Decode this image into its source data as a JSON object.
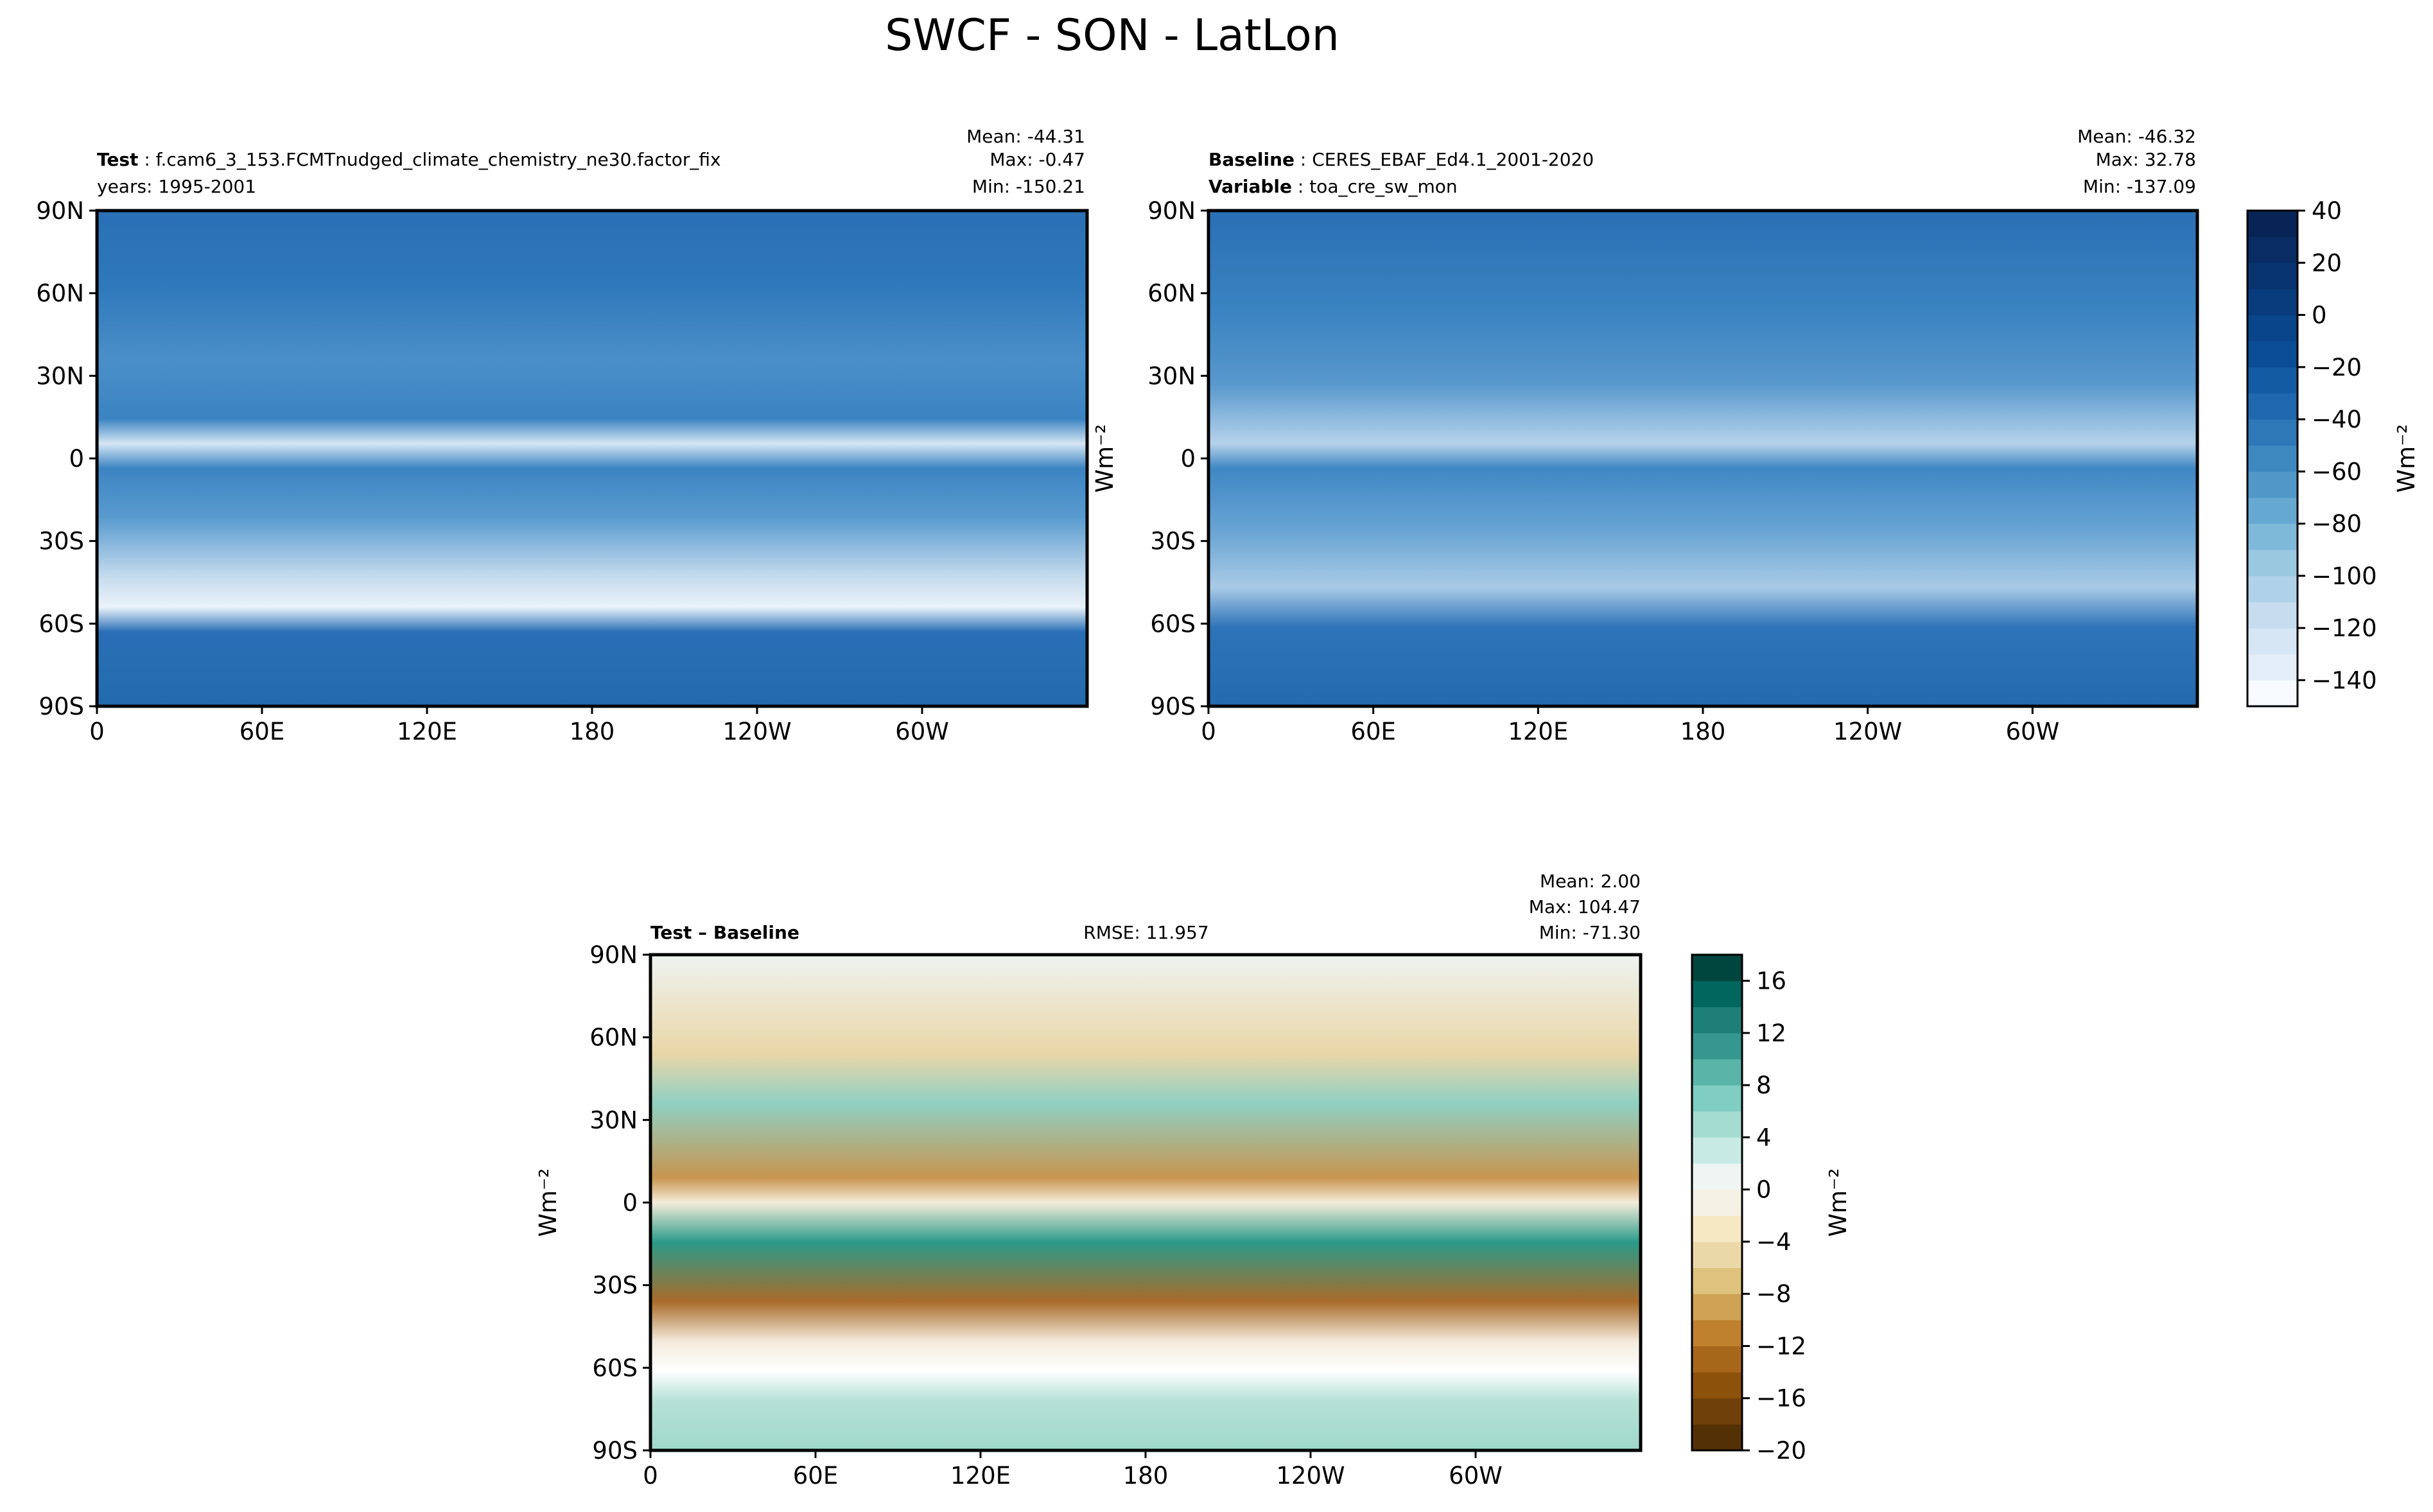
{
  "chart_data": {
    "type": "heatmap",
    "title": "SWCF - SON - LatLon",
    "panels": [
      {
        "id": "test",
        "label_bold": "Test",
        "label_text": "f.cam6_3_153.FCMTnudged_climate_chemistry_ne30.factor_fix",
        "line2": "years: 1995-2001",
        "stats": [
          "Mean: -44.31",
          "Max: -0.47",
          "Min: -150.21"
        ],
        "yticks": [
          "90N",
          "60N",
          "30N",
          "0",
          "30S",
          "60S",
          "90S"
        ],
        "xticks": [
          "0",
          "60E",
          "120E",
          "180",
          "120W",
          "60W"
        ],
        "colormap": "Blues_r"
      },
      {
        "id": "baseline",
        "label_bold": "Baseline",
        "label_text": "CERES_EBAF_Ed4.1_2001-2020",
        "line2_bold": "Variable",
        "line2_text": "toa_cre_sw_mon",
        "stats": [
          "Mean: -46.32",
          "Max: 32.78",
          "Min: -137.09"
        ],
        "yticks": [
          "90N",
          "60N",
          "30N",
          "0",
          "30S",
          "60S",
          "90S"
        ],
        "xticks": [
          "0",
          "60E",
          "120E",
          "180",
          "120W",
          "60W"
        ],
        "ylabel": "Wm⁻²",
        "colormap": "Blues_r"
      },
      {
        "id": "difference",
        "label_bold": "Test – Baseline",
        "rmse": "RMSE: 11.957",
        "stats": [
          "Mean:  2.00",
          "Max: 104.47",
          "Min: -71.30"
        ],
        "yticks": [
          "90N",
          "60N",
          "30N",
          "0",
          "30S",
          "60S",
          "90S"
        ],
        "xticks": [
          "0",
          "60E",
          "120E",
          "180",
          "120W",
          "60W"
        ],
        "ylabel": "Wm⁻²",
        "colormap": "BrBG"
      }
    ],
    "colorbars": [
      {
        "range": [
          -150,
          40
        ],
        "step": 10,
        "ticks": [
          "40",
          "20",
          "0",
          "−20",
          "−40",
          "−60",
          "−80",
          "−100",
          "−120",
          "−140"
        ],
        "tick_values": [
          40,
          20,
          0,
          -20,
          -40,
          -60,
          -80,
          -100,
          -120,
          -140
        ],
        "label": "Wm⁻²"
      },
      {
        "range": [
          -20,
          18
        ],
        "step": 2,
        "ticks": [
          "16",
          "12",
          "8",
          "4",
          "0",
          "−4",
          "−8",
          "−12",
          "−16",
          "−20"
        ],
        "tick_values": [
          16,
          12,
          8,
          4,
          0,
          -4,
          -8,
          -12,
          -16,
          -20
        ],
        "label": "Wm⁻²"
      }
    ]
  }
}
